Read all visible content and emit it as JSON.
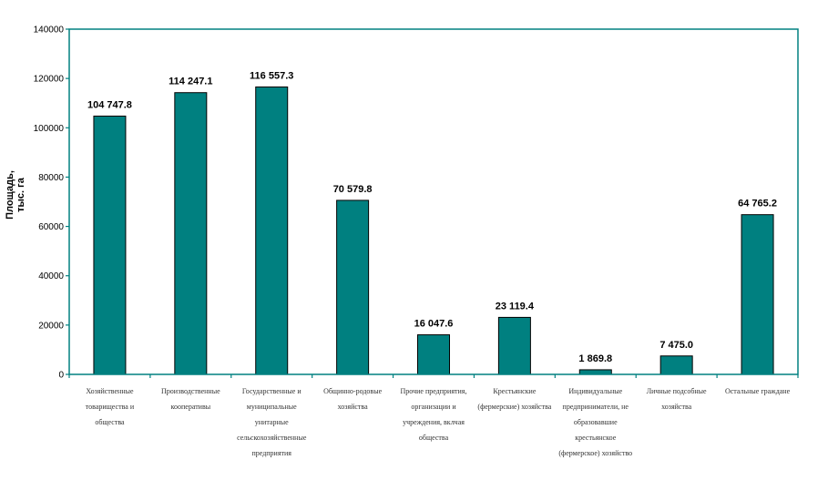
{
  "chart_data": {
    "type": "bar",
    "ylabel_lines": [
      "Площадь,",
      "тыс. га"
    ],
    "ylim": [
      0,
      140000
    ],
    "yticks": [
      0,
      20000,
      40000,
      60000,
      80000,
      100000,
      120000,
      140000
    ],
    "ytick_labels": [
      "0",
      "20000",
      "40000",
      "60000",
      "80000",
      "100000",
      "120000",
      "140000"
    ],
    "grid": false,
    "bar_color": "#008080",
    "axis_color": "#008080",
    "categories": [
      [
        "Хозяйственные",
        "товарищества и",
        "общества"
      ],
      [
        "Производственные",
        "кооперативы"
      ],
      [
        "Государственные и",
        "муниципальные",
        "унитарные",
        "сельскохозяйственные",
        "предприятия"
      ],
      [
        "Общинно-родовые",
        "хозяйства"
      ],
      [
        "Прочие предприятия,",
        "организации и",
        "учреждения, вклчая",
        "общества"
      ],
      [
        "Крестьянские",
        "(фермерские) хозяйства"
      ],
      [
        "Индивидуальные",
        "предприниматели, не",
        "образовавшие",
        "крестьянское",
        "(фермерское) хозяйство"
      ],
      [
        "Личные подсобные",
        "хозяйства"
      ],
      [
        "Остальные граждане"
      ]
    ],
    "values": [
      104747.8,
      114247.1,
      116557.3,
      70579.8,
      16047.6,
      23119.4,
      1869.8,
      7475.0,
      64765.2
    ],
    "value_labels": [
      "104 747.8",
      "114 247.1",
      "116 557.3",
      "70 579.8",
      "16 047.6",
      "23 119.4",
      "1 869.8",
      "7 475.0",
      "64 765.2"
    ]
  }
}
